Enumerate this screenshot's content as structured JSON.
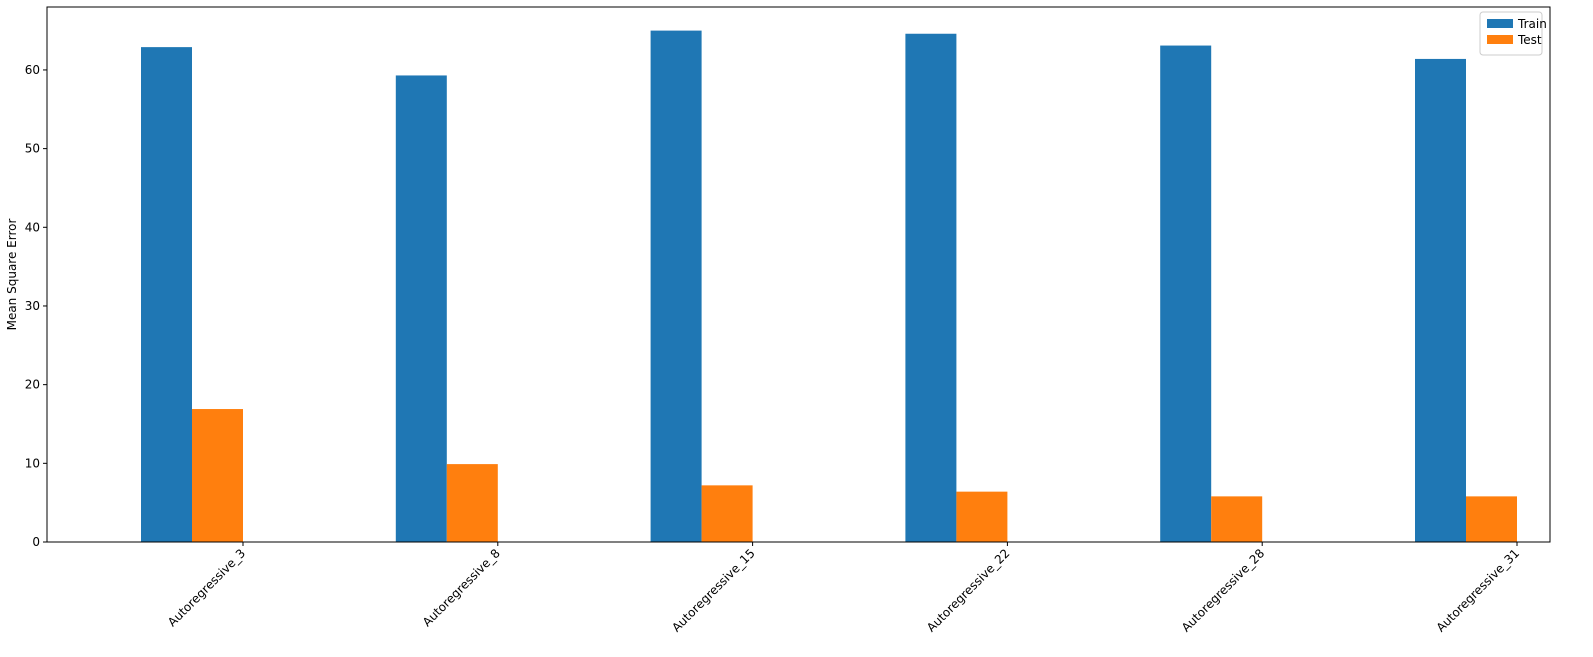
{
  "chart_data": {
    "type": "bar",
    "categories": [
      "Autoregressive_3",
      "Autoregressive_8",
      "Autoregressive_15",
      "Autoregressive_22",
      "Autoregressive_28",
      "Autoregressive_31"
    ],
    "series": [
      {
        "name": "Train",
        "color": "#1f77b4",
        "values": [
          62.9,
          59.3,
          65.0,
          64.6,
          63.1,
          61.4
        ]
      },
      {
        "name": "Test",
        "color": "#ff7f0e",
        "values": [
          16.9,
          9.9,
          7.2,
          6.4,
          5.8,
          5.8
        ]
      }
    ],
    "title": "",
    "xlabel": "",
    "ylabel": "Mean Square Error",
    "ylim": [
      0,
      68
    ],
    "yticks": [
      0,
      10,
      20,
      30,
      40,
      50,
      60
    ],
    "legend_position": "top-right",
    "grid": false,
    "xtick_rotation": 45
  }
}
